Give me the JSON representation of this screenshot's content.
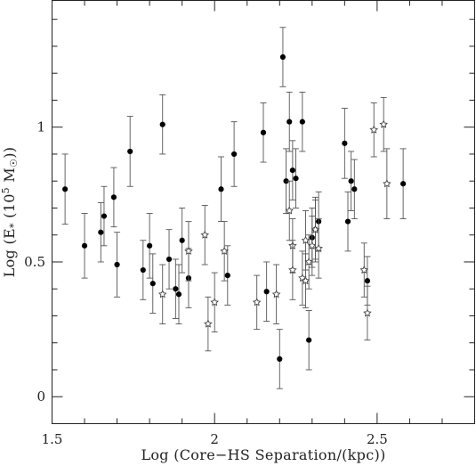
{
  "chart_data": {
    "type": "scatter",
    "title": "",
    "xlabel": "Log (Core−HS Separation/(kpc))",
    "ylabel_parts": {
      "prefix": "Log (E",
      "sub": "*",
      "middle": " (10",
      "sup": "5",
      "suffix": " M",
      "sub2": "☉",
      "end": "))"
    },
    "xlim": [
      1.5,
      2.8
    ],
    "ylim": [
      -0.1,
      1.47
    ],
    "xticks": [
      1.5,
      2,
      2.5
    ],
    "xtick_labels": [
      "1.5",
      "2",
      "2.5"
    ],
    "yticks": [
      0,
      0.5,
      1
    ],
    "ytick_labels": [
      "0",
      "0.5",
      "1"
    ],
    "grid": false,
    "series": [
      {
        "marker": "filled-circle",
        "points": [
          {
            "x": 1.54,
            "y": 0.77,
            "err": 0.13
          },
          {
            "x": 1.6,
            "y": 0.56,
            "err": 0.12
          },
          {
            "x": 1.65,
            "y": 0.61,
            "err": 0.11
          },
          {
            "x": 1.66,
            "y": 0.67,
            "err": 0.11
          },
          {
            "x": 1.69,
            "y": 0.74,
            "err": 0.11
          },
          {
            "x": 1.7,
            "y": 0.49,
            "err": 0.12
          },
          {
            "x": 1.74,
            "y": 0.91,
            "err": 0.13
          },
          {
            "x": 1.78,
            "y": 0.47,
            "err": 0.11
          },
          {
            "x": 1.8,
            "y": 0.56,
            "err": 0.12
          },
          {
            "x": 1.81,
            "y": 0.42,
            "err": 0.11
          },
          {
            "x": 1.84,
            "y": 1.01,
            "err": 0.11
          },
          {
            "x": 1.86,
            "y": 0.51,
            "err": 0.11
          },
          {
            "x": 1.88,
            "y": 0.4,
            "err": 0.11
          },
          {
            "x": 1.89,
            "y": 0.38,
            "err": 0.11
          },
          {
            "x": 1.9,
            "y": 0.58,
            "err": 0.12
          },
          {
            "x": 1.92,
            "y": 0.44,
            "err": 0.11
          },
          {
            "x": 2.02,
            "y": 0.77,
            "err": 0.12
          },
          {
            "x": 2.04,
            "y": 0.45,
            "err": 0.11
          },
          {
            "x": 2.06,
            "y": 0.9,
            "err": 0.12
          },
          {
            "x": 2.15,
            "y": 0.98,
            "err": 0.11
          },
          {
            "x": 2.16,
            "y": 0.39,
            "err": 0.11
          },
          {
            "x": 2.2,
            "y": 0.14,
            "err": 0.11
          },
          {
            "x": 2.21,
            "y": 1.26,
            "err": 0.11
          },
          {
            "x": 2.22,
            "y": 0.8,
            "err": 0.12
          },
          {
            "x": 2.23,
            "y": 1.02,
            "err": 0.11
          },
          {
            "x": 2.24,
            "y": 0.84,
            "err": 0.11
          },
          {
            "x": 2.25,
            "y": 0.81,
            "err": 0.11
          },
          {
            "x": 2.27,
            "y": 1.02,
            "err": 0.11
          },
          {
            "x": 2.29,
            "y": 0.21,
            "err": 0.11
          },
          {
            "x": 2.3,
            "y": 0.59,
            "err": 0.11
          },
          {
            "x": 2.31,
            "y": 0.62,
            "err": 0.12
          },
          {
            "x": 2.32,
            "y": 0.65,
            "err": 0.11
          },
          {
            "x": 2.4,
            "y": 0.94,
            "err": 0.13
          },
          {
            "x": 2.41,
            "y": 0.65,
            "err": 0.11
          },
          {
            "x": 2.42,
            "y": 0.8,
            "err": 0.11
          },
          {
            "x": 2.43,
            "y": 0.77,
            "err": 0.11
          },
          {
            "x": 2.47,
            "y": 0.43,
            "err": 0.09
          },
          {
            "x": 2.58,
            "y": 0.79,
            "err": 0.13
          }
        ]
      },
      {
        "marker": "open-star",
        "points": [
          {
            "x": 1.84,
            "y": 0.38,
            "err": 0.11
          },
          {
            "x": 1.92,
            "y": 0.54,
            "err": 0.11
          },
          {
            "x": 1.97,
            "y": 0.6,
            "err": 0.11
          },
          {
            "x": 1.98,
            "y": 0.27,
            "err": 0.1
          },
          {
            "x": 2.0,
            "y": 0.35,
            "err": 0.11
          },
          {
            "x": 2.03,
            "y": 0.54,
            "err": 0.11
          },
          {
            "x": 2.13,
            "y": 0.35,
            "err": 0.1
          },
          {
            "x": 2.19,
            "y": 0.38,
            "err": 0.11
          },
          {
            "x": 2.23,
            "y": 0.69,
            "err": 0.11
          },
          {
            "x": 2.24,
            "y": 0.56,
            "err": 0.1
          },
          {
            "x": 2.24,
            "y": 0.47,
            "err": 0.11
          },
          {
            "x": 2.27,
            "y": 0.44,
            "err": 0.1
          },
          {
            "x": 2.28,
            "y": 0.58,
            "err": 0.11
          },
          {
            "x": 2.28,
            "y": 0.43,
            "err": 0.1
          },
          {
            "x": 2.29,
            "y": 0.5,
            "err": 0.1
          },
          {
            "x": 2.3,
            "y": 0.56,
            "err": 0.11
          },
          {
            "x": 2.31,
            "y": 0.62,
            "err": 0.11
          },
          {
            "x": 2.32,
            "y": 0.55,
            "err": 0.11
          },
          {
            "x": 2.46,
            "y": 0.47,
            "err": 0.1
          },
          {
            "x": 2.47,
            "y": 0.31,
            "err": 0.1
          },
          {
            "x": 2.49,
            "y": 0.99,
            "err": 0.1
          },
          {
            "x": 2.52,
            "y": 1.01,
            "err": 0.1
          },
          {
            "x": 2.53,
            "y": 0.79,
            "err": 0.13
          }
        ]
      }
    ]
  }
}
